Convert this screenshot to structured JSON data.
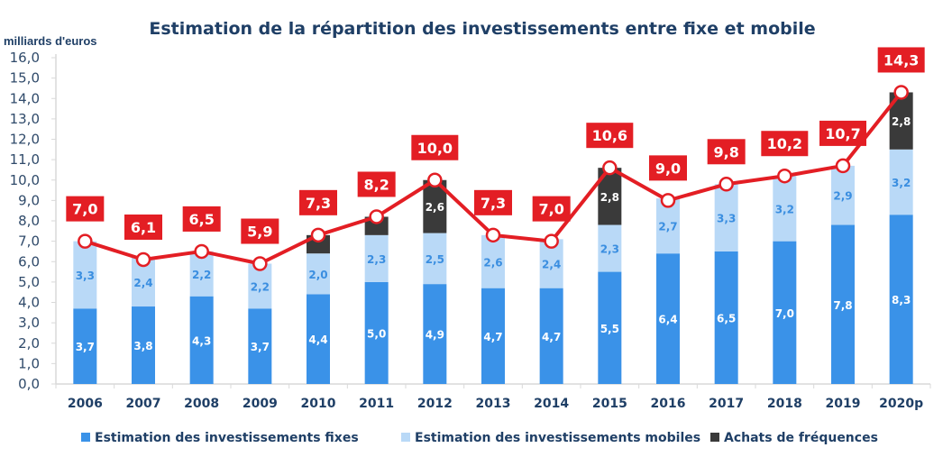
{
  "chart_data": {
    "type": "bar",
    "subtype": "stacked-bar-with-total-line",
    "title": "Estimation de la répartition des investissements entre fixe et mobile",
    "ylabel": "milliards d'euros",
    "xlabel": "",
    "ylim": [
      0,
      16
    ],
    "yticks": [
      "0,0",
      "1,0",
      "2,0",
      "3,0",
      "4,0",
      "5,0",
      "6,0",
      "7,0",
      "8,0",
      "9,0",
      "10,0",
      "11,0",
      "12,0",
      "13,0",
      "14,0",
      "15,0",
      "16,0"
    ],
    "categories": [
      "2006",
      "2007",
      "2008",
      "2009",
      "2010",
      "2011",
      "2012",
      "2013",
      "2014",
      "2015",
      "2016",
      "2017",
      "2018",
      "2019",
      "2020p"
    ],
    "series": [
      {
        "name": "Estimation des investissements fixes",
        "color": "#3a92e8",
        "label_color": "#ffffff",
        "values": [
          3.7,
          3.8,
          4.3,
          3.7,
          4.4,
          5.0,
          4.9,
          4.7,
          4.7,
          5.5,
          6.4,
          6.5,
          7.0,
          7.8,
          8.3
        ],
        "labels": [
          "3,7",
          "3,8",
          "4,3",
          "3,7",
          "4,4",
          "5,0",
          "4,9",
          "4,7",
          "4,7",
          "5,5",
          "6,4",
          "6,5",
          "7,0",
          "7,8",
          "8,3"
        ]
      },
      {
        "name": "Estimation des investissements  mobiles",
        "color": "#b9d9f7",
        "label_color": "#3a8ee0",
        "values": [
          3.3,
          2.4,
          2.2,
          2.2,
          2.0,
          2.3,
          2.5,
          2.6,
          2.4,
          2.3,
          2.7,
          3.3,
          3.2,
          2.9,
          3.2
        ],
        "labels": [
          "3,3",
          "2,4",
          "2,2",
          "2,2",
          "2,0",
          "2,3",
          "2,5",
          "2,6",
          "2,4",
          "2,3",
          "2,7",
          "3,3",
          "3,2",
          "2,9",
          "3,2"
        ]
      },
      {
        "name": "Achats de fréquences",
        "color": "#3a3a3a",
        "label_color": "#ffffff",
        "values": [
          0,
          0,
          0,
          0,
          0.9,
          0.9,
          2.6,
          0,
          0,
          2.8,
          0,
          0,
          0,
          0,
          2.8
        ],
        "labels": [
          "",
          "",
          "",
          "",
          "",
          "",
          "2,6",
          "",
          "",
          "2,8",
          "",
          "",
          "",
          "",
          "2,8"
        ]
      }
    ],
    "total_line": {
      "name": "Total",
      "color": "#e31e24",
      "values": [
        7.0,
        6.1,
        6.5,
        5.9,
        7.3,
        8.2,
        10.0,
        7.3,
        7.0,
        10.6,
        9.0,
        9.8,
        10.2,
        10.7,
        14.3
      ],
      "labels": [
        "7,0",
        "6,1",
        "6,5",
        "5,9",
        "7,3",
        "8,2",
        "10,0",
        "7,3",
        "7,0",
        "10,6",
        "9,0",
        "9,8",
        "10,2",
        "10,7",
        "14,3"
      ]
    },
    "legend": {
      "position": "bottom",
      "items": [
        "Estimation des investissements fixes",
        "Estimation des investissements  mobiles",
        "Achats de fréquences"
      ]
    },
    "grid": false
  }
}
